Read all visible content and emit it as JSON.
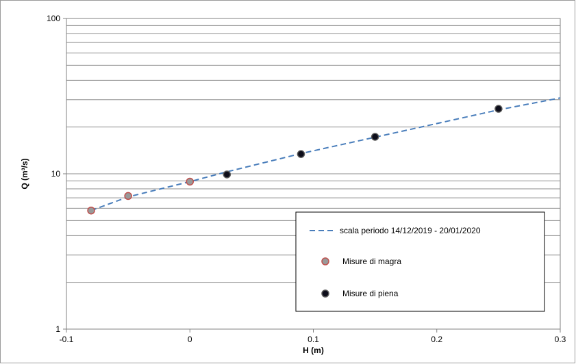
{
  "chart_data": {
    "type": "scatter",
    "xlabel": "H (m)",
    "ylabel": "Q (m³/s)",
    "xlim": [
      -0.1,
      0.3
    ],
    "ylim": [
      1,
      100
    ],
    "yscale": "log",
    "x_ticks": [
      -0.1,
      0,
      0.1,
      0.2,
      0.3
    ],
    "x_tick_labels": [
      "-0.1",
      "0",
      "0.1",
      "0.2",
      "0.3"
    ],
    "y_ticks": [
      1,
      10,
      100
    ],
    "y_tick_labels": [
      "1",
      "10",
      "100"
    ],
    "grid": "horizontal minor and major",
    "legend_position": "bottom-right",
    "series": [
      {
        "name": "scala periodo 14/12/2019 - 20/01/2020",
        "kind": "line",
        "style": "dashed",
        "color": "#4a7ebb",
        "x": [
          -0.08,
          -0.05,
          0,
          0.03,
          0.09,
          0.15,
          0.25,
          0.3
        ],
        "y": [
          5.8,
          7.1,
          8.9,
          10.3,
          13.5,
          17.2,
          25.8,
          30.8
        ]
      },
      {
        "name": "Misure di magra",
        "kind": "points",
        "color": "#c0504d",
        "fill": "#999999",
        "x": [
          -0.08,
          -0.05,
          0
        ],
        "y": [
          5.8,
          7.2,
          8.9
        ]
      },
      {
        "name": "Misure di piena",
        "kind": "points",
        "color": "#595959",
        "fill": "#0d0d1a",
        "x": [
          0.03,
          0.09,
          0.15,
          0.25
        ],
        "y": [
          9.9,
          13.4,
          17.3,
          26.2
        ]
      }
    ]
  }
}
